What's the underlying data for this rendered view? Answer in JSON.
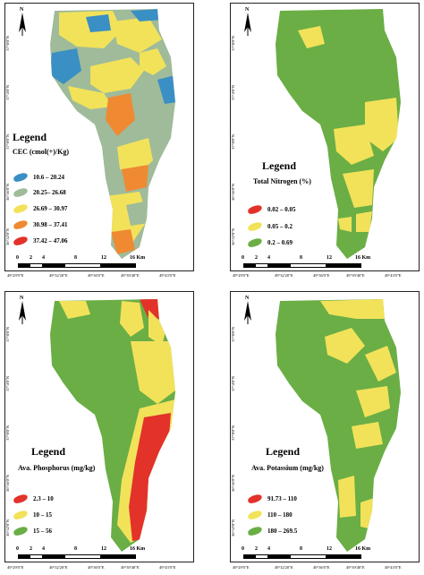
{
  "panels": [
    {
      "id": "cec",
      "legend_title": "Legend",
      "legend_subtitle": "CEC (cmol(+)/Kg)",
      "classes": [
        {
          "label": "10.6 – 20.24",
          "color": "#3a8fc4"
        },
        {
          "label": "20.25– 26.68",
          "color": "#9fbb9a"
        },
        {
          "label": "26.69 – 30.97",
          "color": "#f2e25a"
        },
        {
          "label": "30.98 – 37.41",
          "color": "#ef8a32"
        },
        {
          "label": "37.42 – 47.06",
          "color": "#e2322a"
        }
      ]
    },
    {
      "id": "nitrogen",
      "legend_title": "Legend",
      "legend_subtitle": "Total Nitrogen (%)",
      "classes": [
        {
          "label": "0.02 – 0.05",
          "color": "#e2322a"
        },
        {
          "label": "0.05 – 0.2",
          "color": "#f2e25a"
        },
        {
          "label": "0.2 – 0.69",
          "color": "#6aae45"
        }
      ]
    },
    {
      "id": "phosphorus",
      "legend_title": "Legend",
      "legend_subtitle": "Ava. Phosphorus (mg/kg)",
      "classes": [
        {
          "label": "2.3 – 10",
          "color": "#e2322a"
        },
        {
          "label": "10 – 15",
          "color": "#f2e25a"
        },
        {
          "label": "15 – 56",
          "color": "#6aae45"
        }
      ]
    },
    {
      "id": "potassium",
      "legend_title": "Legend",
      "legend_subtitle": "Ava. Potassium (mg/kg)",
      "classes": [
        {
          "label": "91.73 – 110",
          "color": "#e2322a"
        },
        {
          "label": "110 – 180",
          "color": "#f2e25a"
        },
        {
          "label": "180 – 269.5",
          "color": "#6aae45"
        }
      ]
    }
  ],
  "north_label": "N",
  "scale_labels": [
    "0",
    "2",
    "4",
    "8",
    "12",
    "16 Km"
  ],
  "longitude_labels": [
    "49°29'0\"E",
    "49°32'20\"E",
    "49°36'0\"E",
    "49°39'40\"E",
    "49°43'0\"E"
  ],
  "latitude_labels": [
    "37°8'0\"N",
    "37°4'0\"N",
    "37°0'0\"N",
    "36°56'0\"N",
    "36°52'0\"N"
  ]
}
